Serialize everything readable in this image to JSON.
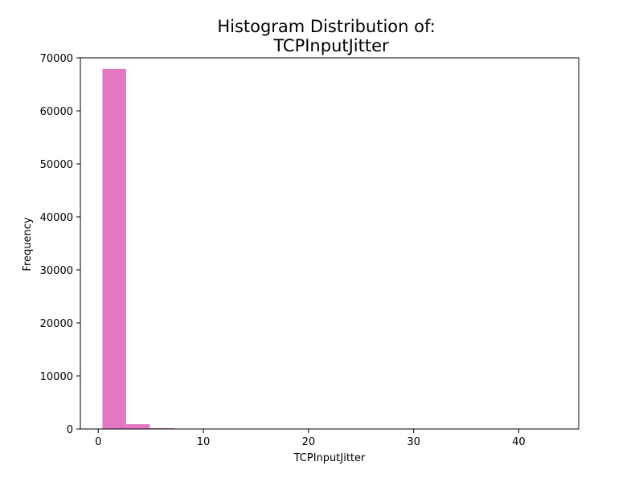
{
  "chart_data": {
    "type": "bar",
    "title_lines": [
      "Histogram Distribution of:",
      "TCPInputJitter"
    ],
    "xlabel": "TCPInputJitter",
    "ylabel": "Frequency",
    "xlim": [
      -1.7,
      45.7
    ],
    "ylim": [
      0,
      70000
    ],
    "xticks": [
      0,
      10,
      20,
      30,
      40
    ],
    "yticks": [
      0,
      10000,
      20000,
      30000,
      40000,
      50000,
      60000,
      70000
    ],
    "grid": false,
    "legend": "none",
    "bar_color": "#e377c2",
    "bins": [
      {
        "start": 0.4,
        "end": 2.65,
        "count": 67900
      },
      {
        "start": 2.65,
        "end": 4.9,
        "count": 900
      },
      {
        "start": 4.9,
        "end": 7.15,
        "count": 150
      },
      {
        "start": 7.15,
        "end": 9.4,
        "count": 40
      },
      {
        "start": 9.4,
        "end": 11.65,
        "count": 15
      },
      {
        "start": 11.65,
        "end": 13.9,
        "count": 8
      },
      {
        "start": 13.9,
        "end": 16.15,
        "count": 5
      },
      {
        "start": 16.15,
        "end": 18.4,
        "count": 3
      },
      {
        "start": 18.4,
        "end": 20.65,
        "count": 2
      },
      {
        "start": 20.65,
        "end": 22.9,
        "count": 2
      },
      {
        "start": 22.9,
        "end": 25.15,
        "count": 1
      },
      {
        "start": 25.15,
        "end": 27.4,
        "count": 1
      },
      {
        "start": 27.4,
        "end": 29.65,
        "count": 1
      },
      {
        "start": 29.65,
        "end": 31.9,
        "count": 1
      },
      {
        "start": 31.9,
        "end": 34.15,
        "count": 0
      },
      {
        "start": 34.15,
        "end": 36.4,
        "count": 1
      },
      {
        "start": 36.4,
        "end": 38.65,
        "count": 0
      },
      {
        "start": 38.65,
        "end": 40.9,
        "count": 1
      },
      {
        "start": 40.9,
        "end": 43.15,
        "count": 0
      },
      {
        "start": 43.15,
        "end": 45.4,
        "count": 1
      }
    ]
  }
}
